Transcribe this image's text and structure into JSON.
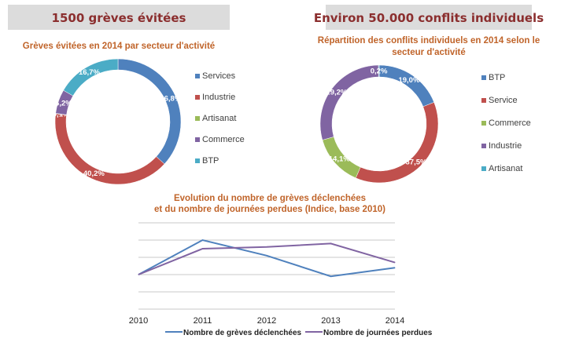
{
  "headers": [
    "1500 grèves évitées",
    "Environ 50.000 conflits individuels"
  ],
  "chart_data": [
    {
      "type": "pie",
      "variant": "donut",
      "title": "Grèves évitées en 2014  par secteur d'activité",
      "title_lines": [
        "Grèves évitées en 2014  par secteur d'activité"
      ],
      "categories": [
        "Services",
        "Industrie",
        "Artisanat",
        "Commerce",
        "BTP"
      ],
      "values": [
        36.8,
        40.2,
        0.1,
        6.2,
        16.7
      ],
      "labels": [
        "36,8%",
        "40,2%",
        "0,1%",
        "6,2%",
        "16,7%"
      ],
      "colors": [
        "#4f81bd",
        "#c0504d",
        "#9bbb59",
        "#8064a2",
        "#4bacc6"
      ],
      "legend": "right"
    },
    {
      "type": "pie",
      "variant": "donut",
      "title": "Répartition des conflits individuels en 2014 selon le secteur d'activité",
      "title_lines": [
        "Répartition des conflits individuels en 2014 selon le",
        "secteur d'activité"
      ],
      "categories": [
        "BTP",
        "Service",
        "Commerce",
        "Industrie",
        "Artisanat"
      ],
      "values": [
        19.0,
        37.5,
        14.1,
        29.2,
        0.2
      ],
      "labels": [
        "19,0%",
        "37,5%",
        "14,1%",
        "29,2%",
        "0,2%"
      ],
      "colors": [
        "#4f81bd",
        "#c0504d",
        "#9bbb59",
        "#8064a2",
        "#4bacc6"
      ],
      "legend": "right"
    },
    {
      "type": "line",
      "title": "Evolution du nombre de grèves déclenchées et du nombre de journées perdues (Indice, base 2010)",
      "title_lines": [
        "Evolution du nombre de grèves déclenchées",
        "et du nombre de journées perdues (Indice, base 2010)"
      ],
      "x": [
        "2010",
        "2011",
        "2012",
        "2013",
        "2014"
      ],
      "series": [
        {
          "name": "Nombre de grèves déclenchées",
          "values": [
            100,
            120,
            111,
            99,
            104
          ],
          "color": "#4f81bd"
        },
        {
          "name": "Nombre de journées perdues",
          "values": [
            100,
            115,
            116,
            118,
            107
          ],
          "color": "#8064a2"
        }
      ],
      "ylim": [
        80,
        130
      ],
      "grid": true,
      "legend": "bottom"
    }
  ]
}
